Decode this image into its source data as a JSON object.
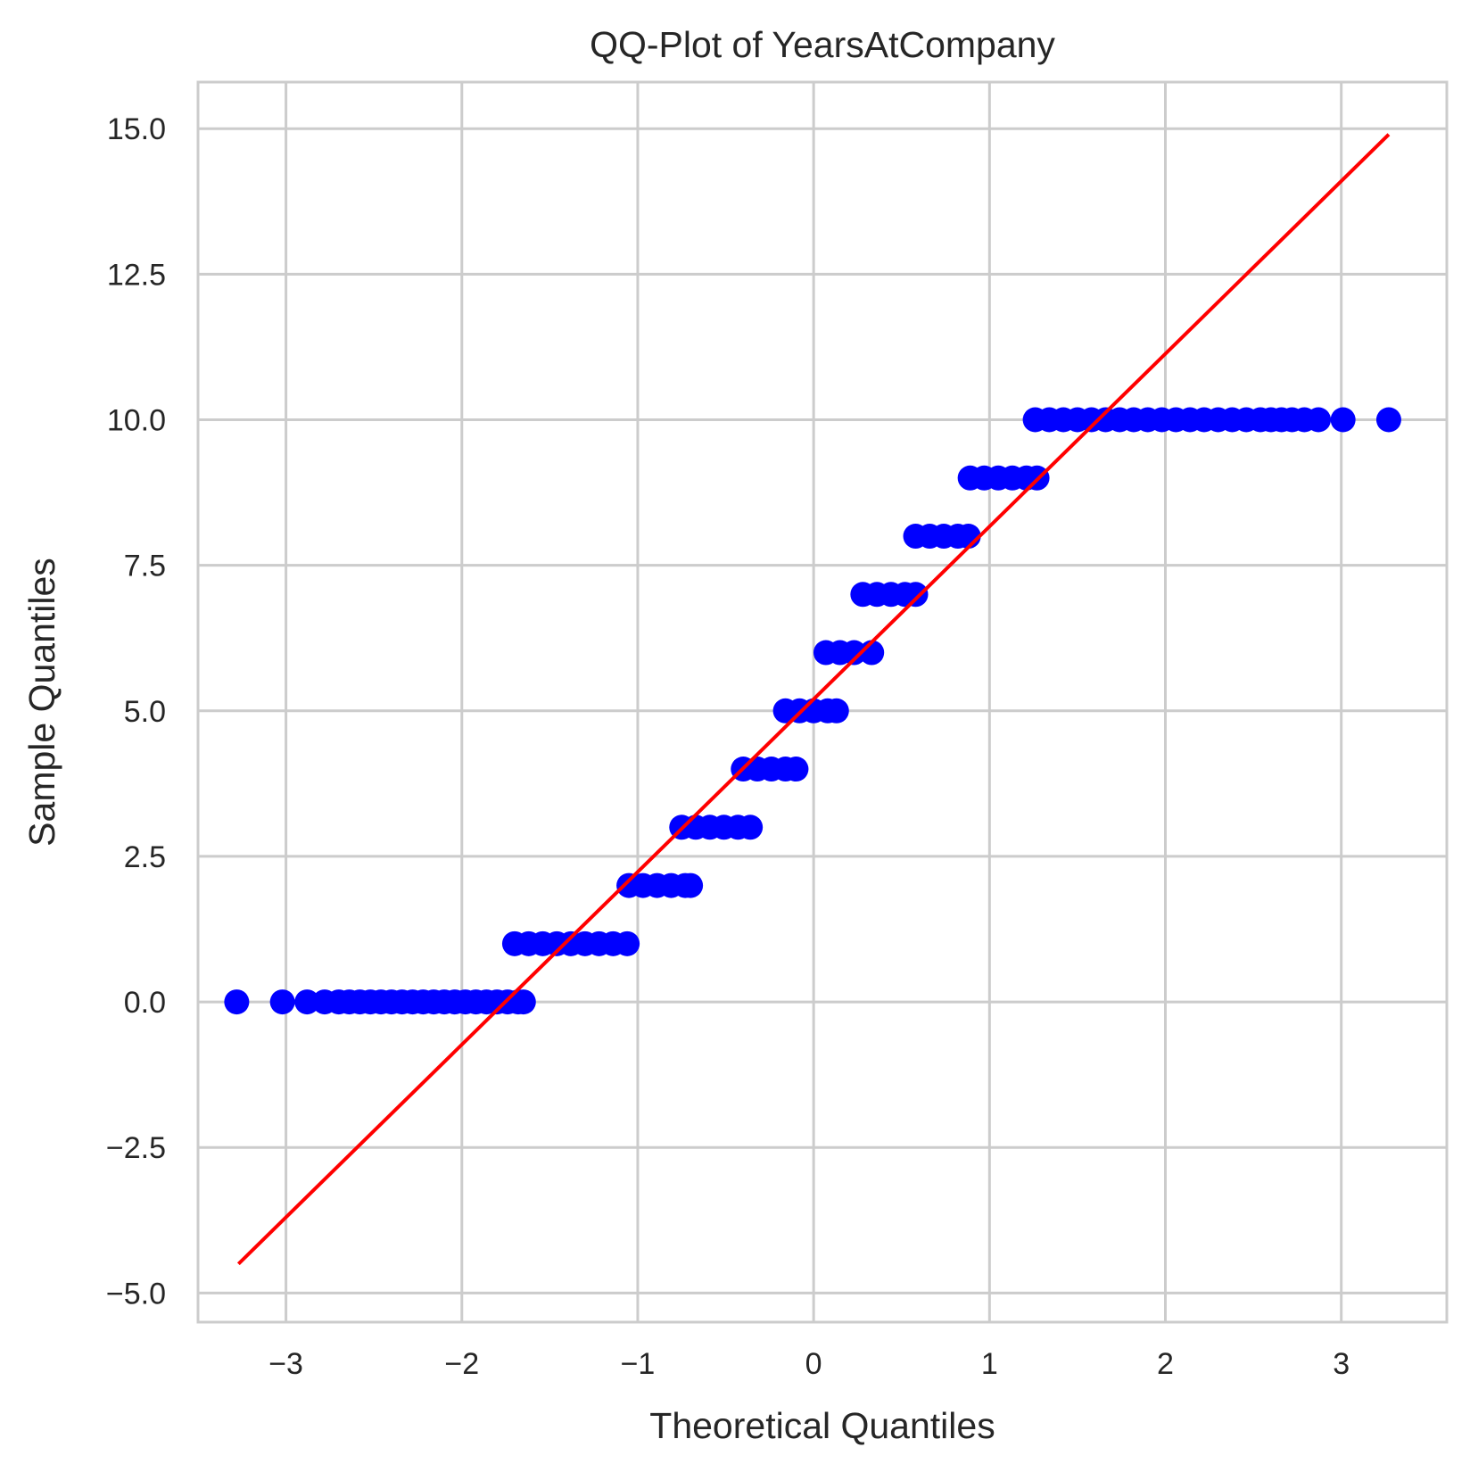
{
  "chart_data": {
    "type": "scatter",
    "title": "QQ-Plot of YearsAtCompany",
    "xlabel": "Theoretical Quantiles",
    "ylabel": "Sample Quantiles",
    "xlim": [
      -3.5,
      3.6
    ],
    "ylim": [
      -5.5,
      15.8
    ],
    "x_ticks": [
      -3,
      -2,
      -1,
      0,
      1,
      2,
      3
    ],
    "x_tick_labels": [
      "−3",
      "−2",
      "−1",
      "0",
      "1",
      "2",
      "3"
    ],
    "y_ticks": [
      -5.0,
      -2.5,
      0.0,
      2.5,
      5.0,
      7.5,
      10.0,
      12.5,
      15.0
    ],
    "y_tick_labels": [
      "−5.0",
      "−2.5",
      "0.0",
      "2.5",
      "5.0",
      "7.5",
      "10.0",
      "12.5",
      "15.0"
    ],
    "grid": true,
    "point_color": "#0000ff",
    "line_color": "#ff0000",
    "sample_points": [
      {
        "y": 0,
        "x": [
          -3.28,
          -3.02,
          -2.88,
          -2.78,
          -2.7,
          -2.64,
          -2.58,
          -2.52,
          -2.46,
          -2.4,
          -2.34,
          -2.28,
          -2.22,
          -2.16,
          -2.1,
          -2.04,
          -1.98,
          -1.92,
          -1.86,
          -1.8,
          -1.74,
          -1.68,
          -1.65
        ]
      },
      {
        "y": 1,
        "x": [
          -1.7,
          -1.62,
          -1.54,
          -1.46,
          -1.38,
          -1.3,
          -1.22,
          -1.14,
          -1.06
        ]
      },
      {
        "y": 2,
        "x": [
          -1.05,
          -0.97,
          -0.89,
          -0.81,
          -0.73,
          -0.7
        ]
      },
      {
        "y": 3,
        "x": [
          -0.75,
          -0.67,
          -0.59,
          -0.51,
          -0.43,
          -0.36
        ]
      },
      {
        "y": 4,
        "x": [
          -0.4,
          -0.32,
          -0.24,
          -0.16,
          -0.1
        ]
      },
      {
        "y": 5,
        "x": [
          -0.16,
          -0.08,
          0.0,
          0.08,
          0.13
        ]
      },
      {
        "y": 6,
        "x": [
          0.07,
          0.15,
          0.23,
          0.33
        ]
      },
      {
        "y": 7,
        "x": [
          0.28,
          0.36,
          0.44,
          0.52,
          0.58
        ]
      },
      {
        "y": 8,
        "x": [
          0.58,
          0.66,
          0.74,
          0.82,
          0.88
        ]
      },
      {
        "y": 9,
        "x": [
          0.89,
          0.97,
          1.05,
          1.13,
          1.21,
          1.27
        ]
      },
      {
        "y": 10,
        "x": [
          1.26,
          1.34,
          1.42,
          1.5,
          1.58,
          1.66,
          1.74,
          1.82,
          1.9,
          1.98,
          2.06,
          2.14,
          2.22,
          2.3,
          2.38,
          2.46,
          2.54,
          2.6,
          2.66,
          2.72,
          2.79,
          2.87,
          3.01,
          3.27
        ]
      }
    ],
    "reference_line": {
      "x": [
        -3.27,
        3.27
      ],
      "y": [
        -4.5,
        14.9
      ]
    }
  }
}
